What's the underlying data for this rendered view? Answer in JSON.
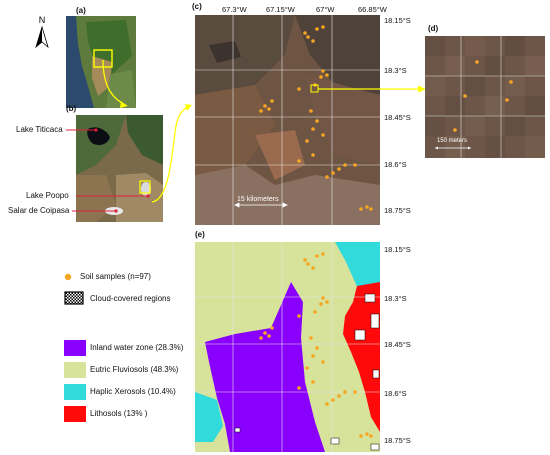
{
  "panels": {
    "a": "(a)",
    "b": "(b)",
    "c": "(c)",
    "d": "(d)",
    "e": "(e)"
  },
  "north": "N",
  "places": {
    "lake_titicaca": "Lake Titicaca",
    "lake_poopo": "Lake Poopo",
    "salar_coipasa": "Salar de Coipasa"
  },
  "top_ticks": [
    "67.3°W",
    "67.15°W",
    "67°W",
    "66.85°W"
  ],
  "lat_ticks": [
    "18.15°S",
    "18.3°S",
    "18.45°S",
    "18.6°S",
    "18.75°S"
  ],
  "scalebars": {
    "c": "15 kilometers",
    "d": "150 meters"
  },
  "legend": {
    "samples": "Soil samples (n=97)",
    "cloud": "Cloud-covered regions",
    "classes": [
      {
        "label": "Inland water zone (28.3%)",
        "color": "#8a00ff"
      },
      {
        "label": "Eutric Fluviosols (48.3%)",
        "color": "#d7e29a"
      },
      {
        "label": "Haplic Xerosols (10.4%)",
        "color": "#31dadb"
      },
      {
        "label": "Lithosols (13% )",
        "color": "#ff0a0a"
      }
    ],
    "sample_color": "#f5a623"
  }
}
